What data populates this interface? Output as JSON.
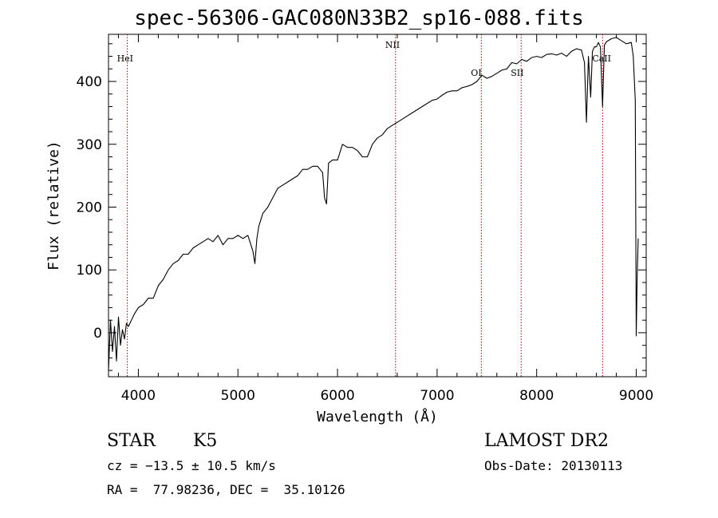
{
  "chart_data": {
    "type": "line",
    "title": "spec-56306-GAC080N33B2_sp16-088.fits",
    "xlabel": "Wavelength (Å)",
    "ylabel": "Flux (relative)",
    "xlim": [
      3700,
      9100
    ],
    "ylim": [
      -70,
      475
    ],
    "xticks": [
      4000,
      5000,
      6000,
      7000,
      8000,
      9000
    ],
    "xtick_labels": [
      "4000",
      "5000",
      "6000",
      "7000",
      "8000",
      "9000"
    ],
    "yticks": [
      0,
      100,
      200,
      300,
      400
    ],
    "ytick_labels": [
      "0",
      "100",
      "200",
      "300",
      "400"
    ],
    "series": [
      {
        "name": "spectrum",
        "x": [
          3700,
          3720,
          3740,
          3760,
          3780,
          3800,
          3820,
          3840,
          3860,
          3880,
          3900,
          3930,
          3960,
          4000,
          4050,
          4100,
          4150,
          4200,
          4250,
          4300,
          4350,
          4400,
          4450,
          4500,
          4550,
          4600,
          4650,
          4700,
          4750,
          4800,
          4850,
          4900,
          4950,
          5000,
          5050,
          5100,
          5150,
          5170,
          5190,
          5210,
          5250,
          5300,
          5350,
          5400,
          5450,
          5500,
          5550,
          5600,
          5650,
          5700,
          5750,
          5800,
          5850,
          5870,
          5890,
          5910,
          5950,
          6000,
          6050,
          6100,
          6150,
          6200,
          6250,
          6300,
          6350,
          6400,
          6450,
          6500,
          6550,
          6600,
          6650,
          6700,
          6750,
          6800,
          6850,
          6900,
          6950,
          7000,
          7050,
          7100,
          7150,
          7200,
          7250,
          7300,
          7350,
          7400,
          7450,
          7500,
          7550,
          7600,
          7650,
          7700,
          7750,
          7800,
          7850,
          7900,
          7950,
          8000,
          8050,
          8100,
          8150,
          8200,
          8250,
          8300,
          8350,
          8400,
          8450,
          8480,
          8500,
          8520,
          8542,
          8560,
          8580,
          8600,
          8620,
          8640,
          8662,
          8680,
          8700,
          8750,
          8800,
          8850,
          8900,
          8950,
          8970,
          8990,
          9000,
          9010,
          9020
        ],
        "y": [
          -60,
          20,
          -30,
          10,
          -45,
          25,
          -20,
          5,
          -10,
          15,
          10,
          20,
          30,
          40,
          45,
          55,
          55,
          75,
          85,
          100,
          110,
          115,
          125,
          125,
          135,
          140,
          145,
          150,
          145,
          155,
          140,
          150,
          150,
          155,
          150,
          155,
          130,
          110,
          150,
          170,
          190,
          200,
          215,
          230,
          235,
          240,
          245,
          250,
          260,
          260,
          265,
          265,
          255,
          215,
          205,
          270,
          275,
          275,
          300,
          295,
          295,
          290,
          280,
          280,
          300,
          310,
          315,
          325,
          330,
          335,
          340,
          345,
          350,
          355,
          360,
          365,
          370,
          372,
          378,
          383,
          385,
          385,
          390,
          392,
          395,
          400,
          410,
          405,
          408,
          413,
          418,
          420,
          430,
          428,
          435,
          432,
          438,
          440,
          438,
          443,
          444,
          442,
          445,
          440,
          448,
          452,
          450,
          430,
          335,
          440,
          375,
          448,
          455,
          455,
          462,
          455,
          360,
          458,
          463,
          468,
          470,
          465,
          460,
          462,
          440,
          370,
          -5,
          95,
          150
        ]
      }
    ],
    "lines": [
      {
        "name": "HeI",
        "x": 3889
      },
      {
        "name": "NII",
        "x": 6583
      },
      {
        "name": "OI",
        "x": 7444
      },
      {
        "name": "SII",
        "x": 7844
      },
      {
        "name": "CaII",
        "x": 8662
      }
    ],
    "line_color": "#aa0000"
  },
  "info": {
    "class_label": "STAR",
    "subclass": "K5",
    "cz": "cz = −13.5 ± 10.5 km/s",
    "coords": "RA =  77.98236, DEC =  35.10126",
    "survey": "LAMOST DR2",
    "obs_date": "Obs-Date: 20130113"
  }
}
